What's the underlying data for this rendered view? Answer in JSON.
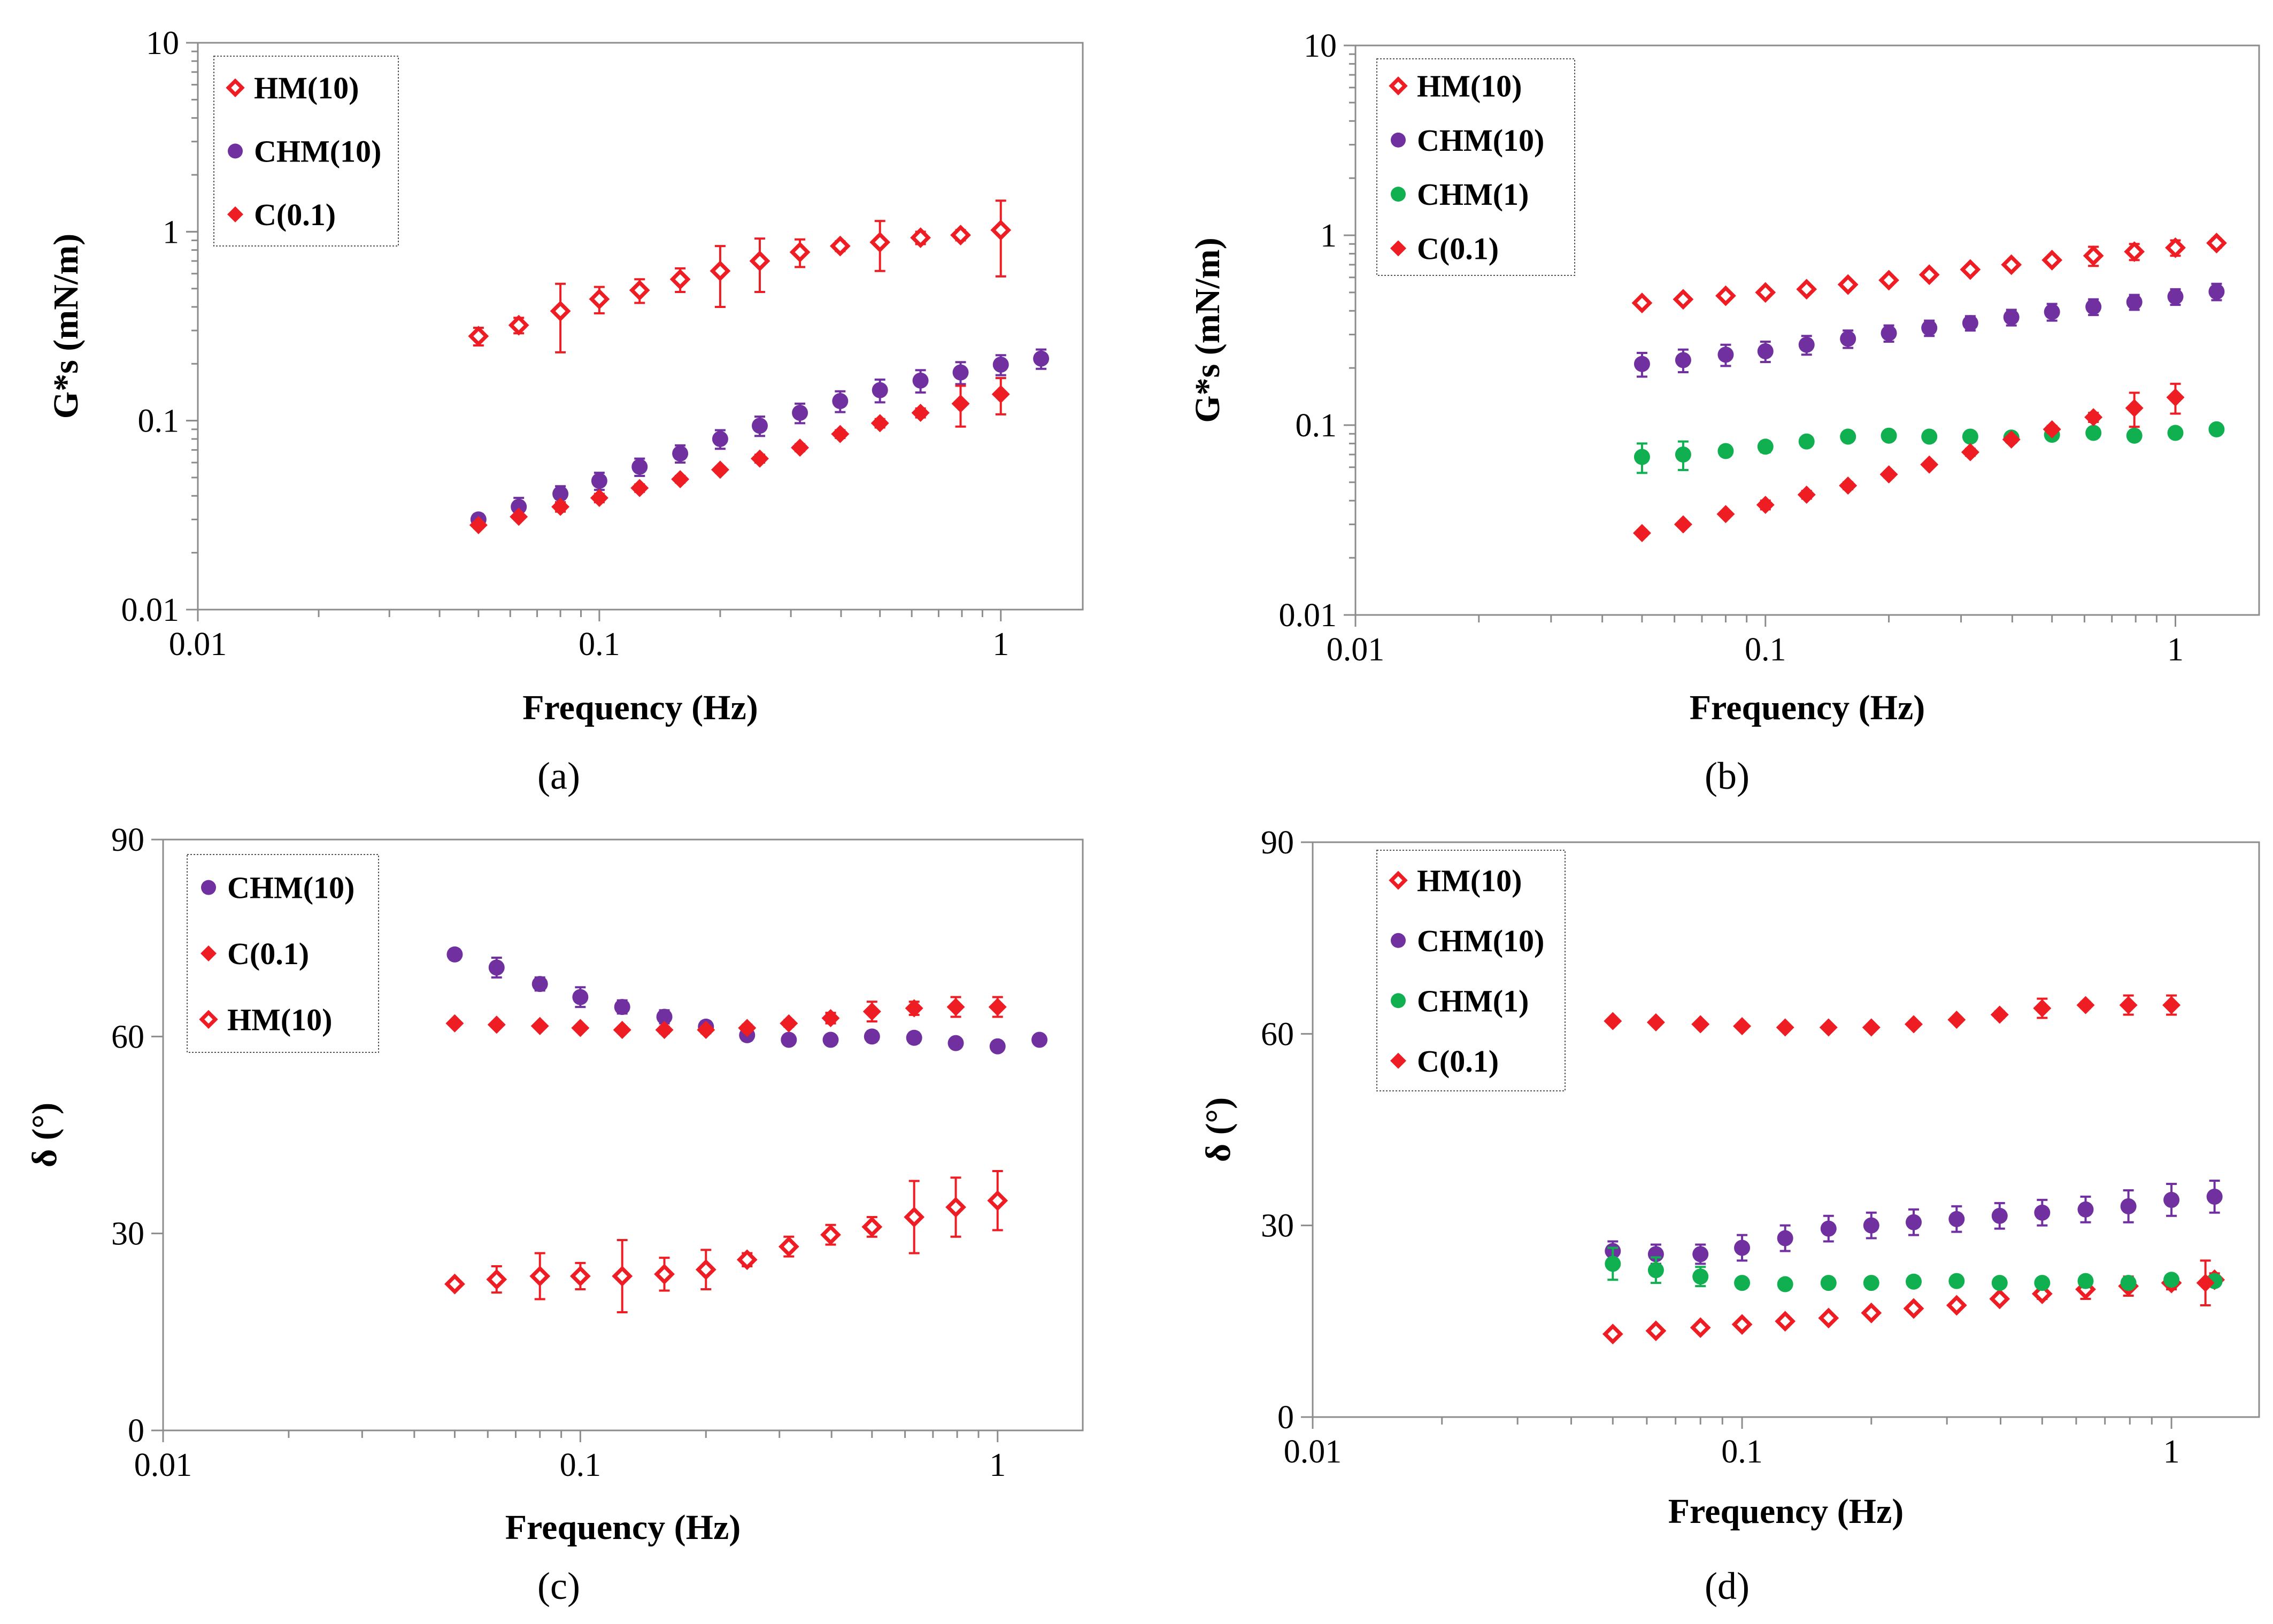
{
  "colors": {
    "hm": "#ee1d24",
    "chm10": "#7030a0",
    "chm1": "#10b050",
    "c01": "#ee1d24"
  },
  "chart_data": [
    {
      "panel": "a",
      "type": "scatter",
      "caption": "(a)",
      "xscale": "log",
      "yscale": "log",
      "xlim": [
        0.01,
        1.6
      ],
      "ylim": [
        0.01,
        10
      ],
      "xticks": [
        "0.01",
        "0.1",
        "1"
      ],
      "yticks": [
        "0.01",
        "0.1",
        "1",
        "10"
      ],
      "xlabel": "Frequency (Hz)",
      "ylabel": "G*s (mN/m)",
      "legend_position": "top-left",
      "series": [
        {
          "name": "HM(10)",
          "marker": "open-diamond",
          "color": "#ee1d24",
          "x": [
            0.05,
            0.063,
            0.08,
            0.1,
            0.126,
            0.159,
            0.2,
            0.251,
            0.316,
            0.398,
            0.5,
            0.631,
            0.794,
            1.0
          ],
          "y": [
            0.28,
            0.32,
            0.38,
            0.44,
            0.49,
            0.56,
            0.62,
            0.7,
            0.78,
            0.84,
            0.88,
            0.93,
            0.96,
            1.02
          ],
          "err": [
            0.03,
            0.03,
            0.15,
            0.07,
            0.07,
            0.08,
            0.22,
            0.22,
            0.13,
            0.05,
            0.26,
            0.07,
            0.06,
            0.44
          ]
        },
        {
          "name": "CHM(10)",
          "marker": "circle",
          "color": "#7030a0",
          "x": [
            0.05,
            0.063,
            0.08,
            0.1,
            0.126,
            0.159,
            0.2,
            0.251,
            0.316,
            0.398,
            0.5,
            0.631,
            0.794,
            1.0,
            1.26
          ],
          "y": [
            0.03,
            0.035,
            0.041,
            0.048,
            0.057,
            0.067,
            0.08,
            0.094,
            0.11,
            0.127,
            0.145,
            0.163,
            0.18,
            0.198,
            0.213
          ],
          "err": [
            0.002,
            0.004,
            0.004,
            0.005,
            0.006,
            0.007,
            0.009,
            0.011,
            0.013,
            0.016,
            0.02,
            0.022,
            0.024,
            0.024,
            0.025
          ]
        },
        {
          "name": "C(0.1)",
          "marker": "diamond",
          "color": "#ee1d24",
          "x": [
            0.05,
            0.063,
            0.08,
            0.1,
            0.126,
            0.159,
            0.2,
            0.251,
            0.316,
            0.398,
            0.5,
            0.631,
            0.794,
            1.0
          ],
          "y": [
            0.028,
            0.031,
            0.035,
            0.039,
            0.044,
            0.049,
            0.055,
            0.063,
            0.072,
            0.085,
            0.097,
            0.11,
            0.123,
            0.138
          ],
          "err": [
            0.001,
            0.001,
            0.002,
            0.002,
            0.002,
            0.002,
            0.002,
            0.003,
            0.003,
            0.004,
            0.005,
            0.006,
            0.03,
            0.03
          ]
        }
      ]
    },
    {
      "panel": "b",
      "type": "scatter",
      "caption": "(b)",
      "xscale": "log",
      "yscale": "log",
      "xlim": [
        0.01,
        1.6
      ],
      "ylim": [
        0.01,
        10
      ],
      "xticks": [
        "0.01",
        "0.1",
        "1"
      ],
      "yticks": [
        "0.01",
        "0.1",
        "1",
        "10"
      ],
      "xlabel": "Frequency (Hz)",
      "ylabel": "G*s (mN/m)",
      "legend_position": "top-left",
      "series": [
        {
          "name": "HM(10)",
          "marker": "open-diamond",
          "color": "#ee1d24",
          "x": [
            0.05,
            0.063,
            0.08,
            0.1,
            0.126,
            0.159,
            0.2,
            0.251,
            0.316,
            0.398,
            0.5,
            0.631,
            0.794,
            1.0,
            1.26
          ],
          "y": [
            0.44,
            0.46,
            0.48,
            0.5,
            0.52,
            0.55,
            0.58,
            0.62,
            0.66,
            0.7,
            0.74,
            0.78,
            0.82,
            0.86,
            0.91
          ],
          "err": [
            0.02,
            0.02,
            0.02,
            0.02,
            0.02,
            0.02,
            0.02,
            0.03,
            0.03,
            0.03,
            0.03,
            0.09,
            0.08,
            0.08,
            0.05
          ]
        },
        {
          "name": "CHM(10)",
          "marker": "circle",
          "color": "#7030a0",
          "x": [
            0.05,
            0.063,
            0.08,
            0.1,
            0.126,
            0.159,
            0.2,
            0.251,
            0.316,
            0.398,
            0.5,
            0.631,
            0.794,
            1.0,
            1.26
          ],
          "y": [
            0.21,
            0.22,
            0.235,
            0.245,
            0.265,
            0.285,
            0.305,
            0.325,
            0.345,
            0.37,
            0.395,
            0.42,
            0.445,
            0.475,
            0.505
          ],
          "err": [
            0.03,
            0.03,
            0.03,
            0.03,
            0.03,
            0.03,
            0.03,
            0.03,
            0.03,
            0.035,
            0.04,
            0.04,
            0.04,
            0.045,
            0.05
          ]
        },
        {
          "name": "CHM(1)",
          "marker": "circle",
          "color": "#10b050",
          "x": [
            0.05,
            0.063,
            0.08,
            0.1,
            0.126,
            0.159,
            0.2,
            0.251,
            0.316,
            0.398,
            0.5,
            0.631,
            0.794,
            1.0,
            1.26
          ],
          "y": [
            0.068,
            0.07,
            0.073,
            0.077,
            0.082,
            0.087,
            0.088,
            0.087,
            0.087,
            0.086,
            0.089,
            0.091,
            0.088,
            0.091,
            0.095
          ],
          "err": [
            0.012,
            0.012,
            0.004,
            0.005,
            0.003,
            0.003,
            0.003,
            0.003,
            0.003,
            0.003,
            0.003,
            0.003,
            0.003,
            0.003,
            0.003
          ]
        },
        {
          "name": "C(0.1)",
          "marker": "diamond",
          "color": "#ee1d24",
          "x": [
            0.05,
            0.063,
            0.08,
            0.1,
            0.126,
            0.159,
            0.2,
            0.251,
            0.316,
            0.398,
            0.5,
            0.631,
            0.794,
            1.0
          ],
          "y": [
            0.027,
            0.03,
            0.034,
            0.038,
            0.043,
            0.048,
            0.055,
            0.062,
            0.072,
            0.084,
            0.095,
            0.11,
            0.123,
            0.14
          ],
          "err": [
            0.001,
            0.001,
            0.001,
            0.002,
            0.002,
            0.002,
            0.002,
            0.002,
            0.003,
            0.003,
            0.004,
            0.006,
            0.025,
            0.025
          ]
        }
      ]
    },
    {
      "panel": "c",
      "type": "scatter",
      "caption": "(c)",
      "xscale": "log",
      "yscale": "linear",
      "xlim": [
        0.01,
        1.6
      ],
      "ylim": [
        0,
        90
      ],
      "xticks": [
        "0.01",
        "0.1",
        "1"
      ],
      "yticks": [
        "0",
        "30",
        "60",
        "90"
      ],
      "xlabel": "Frequency (Hz)",
      "ylabel": "δ (°)",
      "legend_position": "top-left",
      "series": [
        {
          "name": "CHM(10)",
          "marker": "circle",
          "color": "#7030a0",
          "x": [
            0.05,
            0.063,
            0.08,
            0.1,
            0.126,
            0.159,
            0.2,
            0.251,
            0.316,
            0.398,
            0.5,
            0.631,
            0.794,
            1.0,
            1.26
          ],
          "y": [
            72.5,
            70.5,
            68.0,
            66.0,
            64.5,
            63.0,
            61.5,
            60.2,
            59.5,
            59.5,
            60.0,
            59.8,
            59.0,
            58.5,
            59.5
          ],
          "err": [
            0.8,
            1.5,
            1.0,
            1.5,
            1.0,
            1.0,
            0.8,
            0.8,
            0.5,
            0.5,
            0.8,
            0.8,
            0.5,
            0.5,
            0.5
          ]
        },
        {
          "name": "C(0.1)",
          "marker": "diamond",
          "color": "#ee1d24",
          "x": [
            0.05,
            0.063,
            0.08,
            0.1,
            0.126,
            0.159,
            0.2,
            0.251,
            0.316,
            0.398,
            0.5,
            0.631,
            0.794,
            1.0
          ],
          "y": [
            62.0,
            61.8,
            61.6,
            61.3,
            61.0,
            61.0,
            61.0,
            61.3,
            62.0,
            62.8,
            63.8,
            64.3,
            64.5,
            64.5
          ],
          "err": [
            0.3,
            0.3,
            0.3,
            0.3,
            0.3,
            0.5,
            0.5,
            0.5,
            0.5,
            0.8,
            1.5,
            1.0,
            1.5,
            1.5
          ]
        },
        {
          "name": "HM(10)",
          "marker": "open-diamond",
          "color": "#ee1d24",
          "x": [
            0.05,
            0.063,
            0.08,
            0.1,
            0.126,
            0.159,
            0.2,
            0.251,
            0.316,
            0.398,
            0.5,
            0.631,
            0.794,
            1.0
          ],
          "y": [
            22.3,
            23.0,
            23.5,
            23.5,
            23.5,
            23.8,
            24.5,
            26.0,
            28.0,
            29.8,
            31.0,
            32.5,
            34.0,
            35.0
          ],
          "err": [
            0.5,
            2.0,
            3.5,
            2.0,
            5.5,
            2.5,
            3.0,
            1.0,
            1.5,
            1.5,
            1.5,
            5.5,
            4.5,
            4.5
          ]
        }
      ]
    },
    {
      "panel": "d",
      "type": "scatter",
      "caption": "(d)",
      "xscale": "log",
      "yscale": "linear",
      "xlim": [
        0.01,
        1.6
      ],
      "ylim": [
        0,
        90
      ],
      "xticks": [
        "0.01",
        "0.1",
        "1"
      ],
      "yticks": [
        "0",
        "30",
        "60",
        "90"
      ],
      "xlabel": "Frequency (Hz)",
      "ylabel": "δ (°)",
      "legend_position": "top-left",
      "series": [
        {
          "name": "HM(10)",
          "marker": "open-diamond",
          "color": "#ee1d24",
          "x": [
            0.05,
            0.063,
            0.08,
            0.1,
            0.126,
            0.159,
            0.2,
            0.251,
            0.316,
            0.398,
            0.5,
            0.631,
            0.794,
            1.0,
            1.26
          ],
          "y": [
            13.0,
            13.5,
            14.0,
            14.5,
            15.0,
            15.5,
            16.3,
            17.0,
            17.5,
            18.5,
            19.3,
            20.0,
            20.5,
            21.0,
            21.5
          ],
          "err": [
            0.5,
            0.5,
            0.5,
            0.5,
            0.5,
            0.5,
            0.5,
            0.5,
            0.5,
            0.5,
            0.8,
            1.5,
            1.5,
            1.0,
            1.0
          ]
        },
        {
          "name": "CHM(10)",
          "marker": "circle",
          "color": "#7030a0",
          "x": [
            0.05,
            0.063,
            0.08,
            0.1,
            0.126,
            0.159,
            0.2,
            0.251,
            0.316,
            0.398,
            0.5,
            0.631,
            0.794,
            1.0,
            1.26
          ],
          "y": [
            26.0,
            25.5,
            25.5,
            26.5,
            28.0,
            29.5,
            30.0,
            30.5,
            31.0,
            31.5,
            32.0,
            32.5,
            33.0,
            34.0,
            34.5
          ],
          "err": [
            1.5,
            1.5,
            1.5,
            2.0,
            2.0,
            2.0,
            2.0,
            2.0,
            2.0,
            2.0,
            2.0,
            2.0,
            2.5,
            2.5,
            2.5
          ]
        },
        {
          "name": "CHM(1)",
          "marker": "circle",
          "color": "#10b050",
          "x": [
            0.05,
            0.063,
            0.08,
            0.1,
            0.126,
            0.159,
            0.2,
            0.251,
            0.316,
            0.398,
            0.5,
            0.631,
            0.794,
            1.0,
            1.26
          ],
          "y": [
            24.0,
            23.0,
            22.0,
            21.0,
            20.8,
            21.0,
            21.0,
            21.2,
            21.3,
            21.0,
            21.0,
            21.3,
            21.0,
            21.5,
            21.3
          ],
          "err": [
            2.5,
            2.0,
            1.5,
            0.8,
            0.5,
            0.5,
            0.5,
            0.5,
            0.5,
            0.5,
            0.5,
            0.5,
            0.5,
            0.5,
            0.5
          ]
        },
        {
          "name": "C(0.1)",
          "marker": "diamond",
          "color": "#ee1d24",
          "x": [
            0.05,
            0.063,
            0.08,
            0.1,
            0.126,
            0.159,
            0.2,
            0.251,
            0.316,
            0.398,
            0.5,
            0.631,
            0.794,
            1.0,
            1.2
          ],
          "y": [
            62.0,
            61.8,
            61.5,
            61.2,
            61.0,
            61.0,
            61.0,
            61.5,
            62.2,
            63.0,
            64.0,
            64.5,
            64.5,
            64.5,
            21.0
          ],
          "err": [
            0.3,
            0.3,
            0.3,
            0.3,
            0.3,
            0.3,
            0.3,
            0.3,
            0.3,
            0.5,
            1.5,
            0.5,
            1.5,
            1.5,
            3.5
          ]
        }
      ]
    }
  ]
}
